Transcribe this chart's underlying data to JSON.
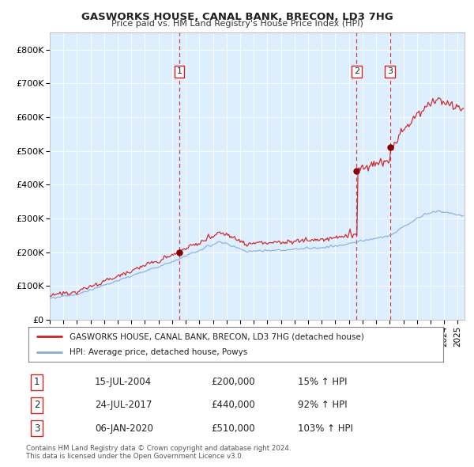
{
  "title": "GASWORKS HOUSE, CANAL BANK, BRECON, LD3 7HG",
  "subtitle": "Price paid vs. HM Land Registry's House Price Index (HPI)",
  "legend_property": "GASWORKS HOUSE, CANAL BANK, BRECON, LD3 7HG (detached house)",
  "legend_hpi": "HPI: Average price, detached house, Powys",
  "transactions": [
    {
      "label": "1",
      "date_num": 2004.54,
      "price": 200000
    },
    {
      "label": "2",
      "date_num": 2017.56,
      "price": 440000
    },
    {
      "label": "3",
      "date_num": 2020.02,
      "price": 510000
    }
  ],
  "transaction_text": [
    {
      "label": "1",
      "date": "15-JUL-2004",
      "price": "£200,000",
      "pct": "15% ↑ HPI"
    },
    {
      "label": "2",
      "date": "24-JUL-2017",
      "price": "£440,000",
      "pct": "92% ↑ HPI"
    },
    {
      "label": "3",
      "date": "06-JAN-2020",
      "price": "£510,000",
      "pct": "103% ↑ HPI"
    }
  ],
  "ylim": [
    0,
    850000
  ],
  "yticks": [
    0,
    100000,
    200000,
    300000,
    400000,
    500000,
    600000,
    700000,
    800000
  ],
  "ytick_labels": [
    "£0",
    "£100K",
    "£200K",
    "£300K",
    "£400K",
    "£500K",
    "£600K",
    "£700K",
    "£800K"
  ],
  "line_color_property": "#cc2222",
  "line_color_hpi": "#88aadd",
  "background_color": "#ddeeff",
  "grid_color": "#ffffff",
  "dashed_line_color": "#cc2222",
  "marker_color": "#880000",
  "footer": "Contains HM Land Registry data © Crown copyright and database right 2024.\nThis data is licensed under the Open Government Licence v3.0.",
  "start_year": 1995.0,
  "end_year": 2025.5
}
